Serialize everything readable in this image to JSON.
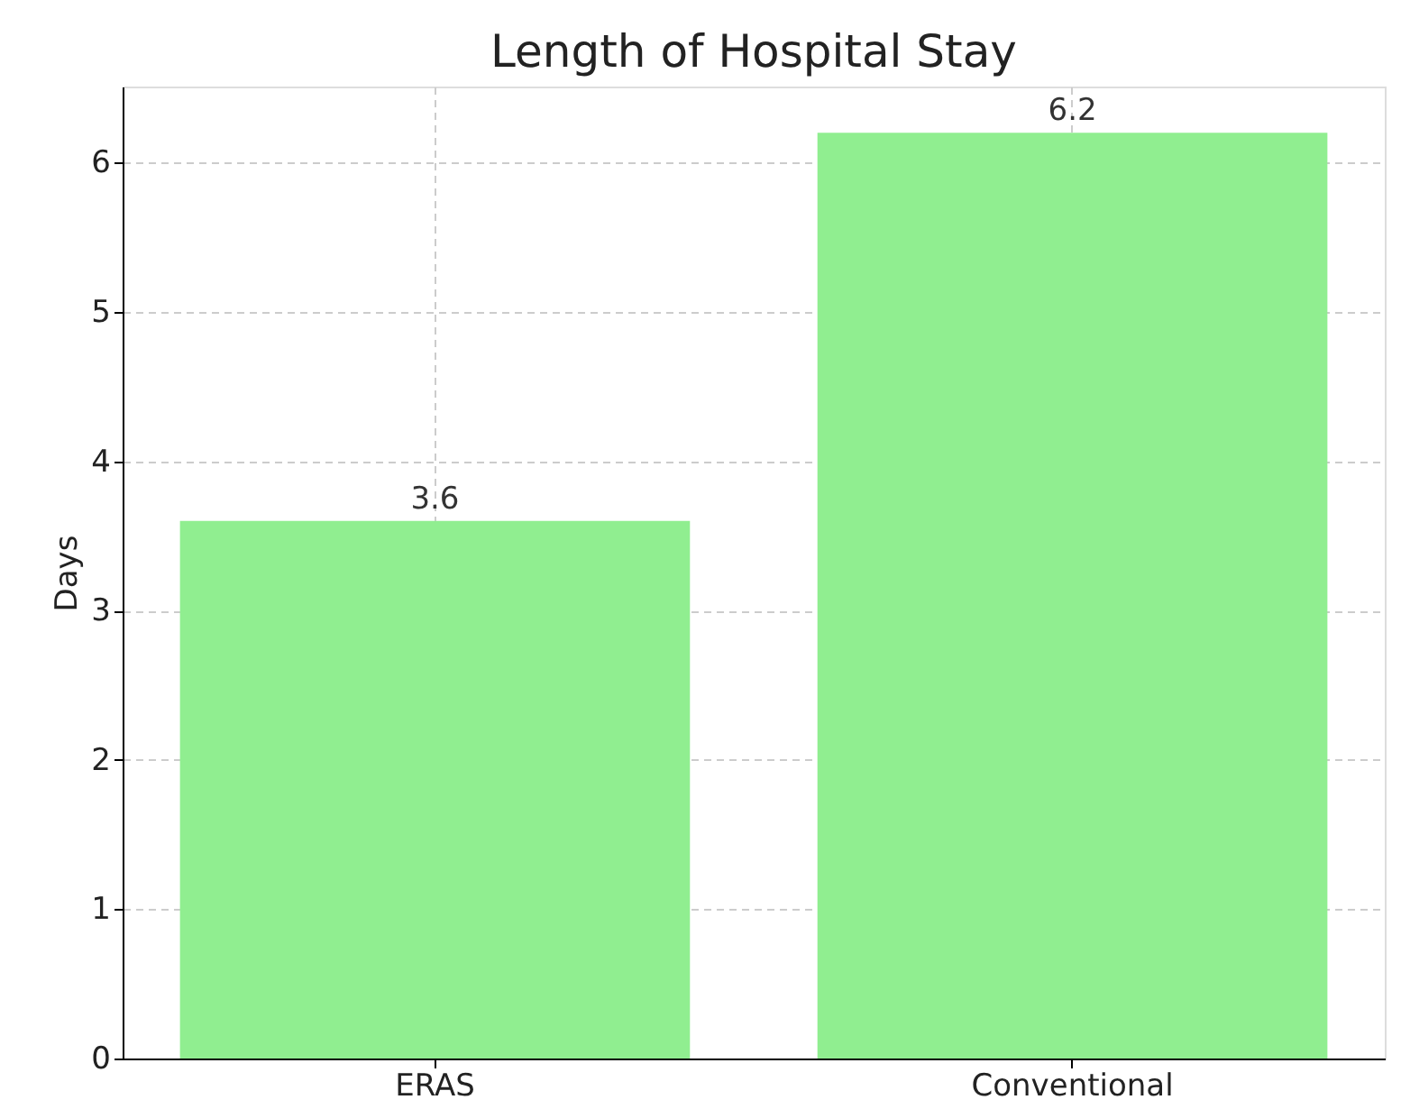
{
  "chart_data": {
    "type": "bar",
    "title": "Length of Hospital Stay",
    "ylabel": "Days",
    "categories": [
      "ERAS",
      "Conventional"
    ],
    "values": [
      3.6,
      6.2
    ],
    "color": "#90ee90",
    "ylim": [
      0,
      6.51
    ],
    "yticks": [
      0,
      1,
      2,
      3,
      4,
      5,
      6
    ],
    "grid": true,
    "data_labels": true
  }
}
